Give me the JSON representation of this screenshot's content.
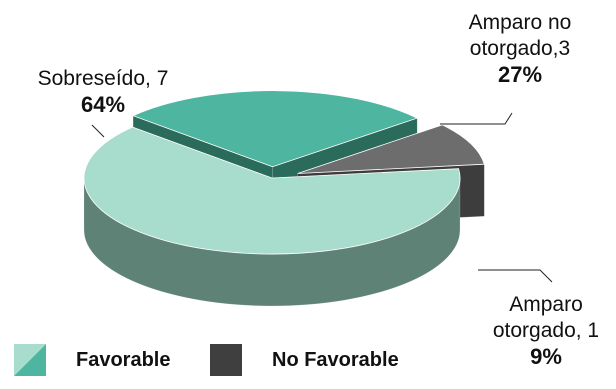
{
  "chart_data": {
    "type": "pie",
    "style": "3d-exploded",
    "slices": [
      {
        "name": "Sobreseído, 7",
        "value": 7,
        "percent": "64%",
        "category": "Favorable",
        "color": "#a8dccc",
        "side": "#5f8277"
      },
      {
        "name": "Amparo no otorgado,3",
        "value": 3,
        "percent": "27%",
        "category": "Favorable",
        "color": "#4db5a0",
        "side": "#2a6b5b"
      },
      {
        "name": "Amparo otorgado, 1",
        "value": 1,
        "percent": "9%",
        "category": "No Favorable",
        "color": "#6d6d6d",
        "side": "#3d3d3d"
      }
    ],
    "labels": {
      "sobreseido": {
        "line1": "Sobreseído, 7",
        "pct": "64%"
      },
      "no_otorgado": {
        "line1": "Amparo no",
        "line2": "otorgado,3",
        "pct": "27%"
      },
      "otorgado": {
        "line1": "Amparo",
        "line2": "otorgado, 1",
        "pct": "9%"
      }
    },
    "legend": [
      {
        "label": "Favorable",
        "color_a": "#a8dccc",
        "color_b": "#4db5a0"
      },
      {
        "label": "No Favorable",
        "color_a": "#3f3f3f",
        "color_b": "#3f3f3f"
      }
    ],
    "legend_position": "bottom-left"
  }
}
